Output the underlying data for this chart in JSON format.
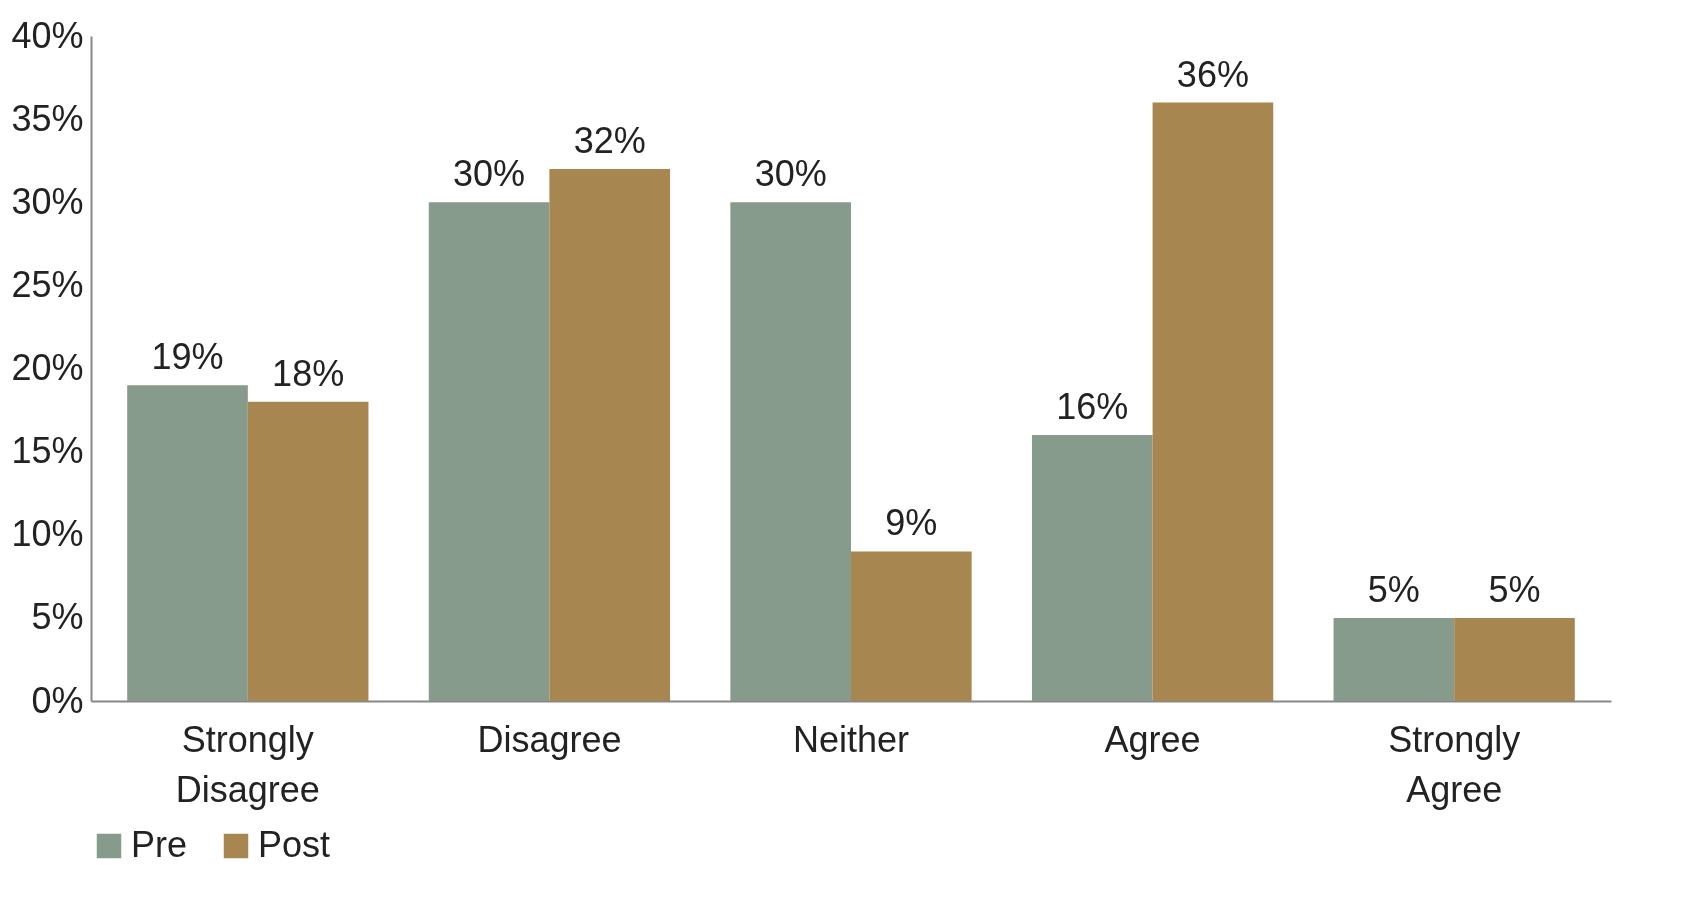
{
  "chart_data": {
    "type": "bar",
    "categories": [
      "Strongly Disagree",
      "Disagree",
      "Neither",
      "Agree",
      "Strongly Agree"
    ],
    "series": [
      {
        "name": "Pre",
        "color": "#879b8c",
        "values": [
          19,
          30,
          30,
          16,
          5
        ],
        "value_labels": [
          "19%",
          "30%",
          "30%",
          "16%",
          "5%"
        ]
      },
      {
        "name": "Post",
        "color": "#a8864f",
        "values": [
          18,
          32,
          9,
          36,
          5
        ],
        "value_labels": [
          "18%",
          "32%",
          "9%",
          "36%",
          "5%"
        ]
      }
    ],
    "ylim": [
      0,
      40
    ],
    "yticks": [
      {
        "value": 0,
        "label": "0%"
      },
      {
        "value": 5,
        "label": "5%"
      },
      {
        "value": 10,
        "label": "10%"
      },
      {
        "value": 15,
        "label": "15%"
      },
      {
        "value": 20,
        "label": "20%"
      },
      {
        "value": 25,
        "label": "25%"
      },
      {
        "value": 30,
        "label": "30%"
      },
      {
        "value": 35,
        "label": "35%"
      },
      {
        "value": 40,
        "label": "40%"
      }
    ],
    "grid": false,
    "legend": "bottom"
  }
}
